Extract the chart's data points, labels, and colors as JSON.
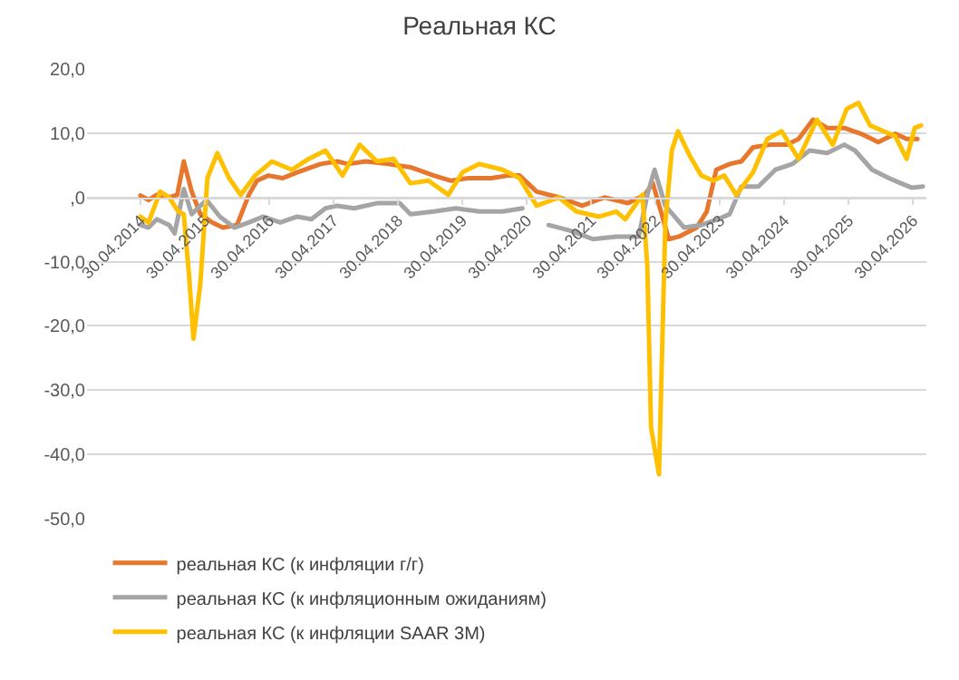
{
  "chart_data": {
    "type": "line",
    "title": "Реальная КС",
    "xlim": [
      "2013-07-01",
      "2026-07-15"
    ],
    "xticks": [
      {
        "value": "2014-04-30",
        "label": "30.04.2014"
      },
      {
        "value": "2015-04-30",
        "label": "30.04.2015"
      },
      {
        "value": "2016-04-30",
        "label": "30.04.2016"
      },
      {
        "value": "2017-04-30",
        "label": "30.04.2017"
      },
      {
        "value": "2018-04-30",
        "label": "30.04.2018"
      },
      {
        "value": "2019-04-30",
        "label": "30.04.2019"
      },
      {
        "value": "2020-04-30",
        "label": "30.04.2020"
      },
      {
        "value": "2021-04-30",
        "label": "30.04.2021"
      },
      {
        "value": "2022-04-30",
        "label": "30.04.2022"
      },
      {
        "value": "2023-04-30",
        "label": "30.04.2023"
      },
      {
        "value": "2024-04-30",
        "label": "30.04.2024"
      },
      {
        "value": "2025-04-30",
        "label": "30.04.2025"
      },
      {
        "value": "2026-04-30",
        "label": "30.04.2026"
      }
    ],
    "ylim": [
      -50,
      20
    ],
    "yticks": [
      {
        "value": -50,
        "label": "-50,0"
      },
      {
        "value": -40,
        "label": "-40,0"
      },
      {
        "value": -30,
        "label": "-30,0"
      },
      {
        "value": -20,
        "label": "-20,0"
      },
      {
        "value": -10,
        "label": "-10,0"
      },
      {
        "value": 0,
        "label": ",0"
      },
      {
        "value": 10,
        "label": "10,0"
      },
      {
        "value": 20,
        "label": "20,0"
      }
    ],
    "grid": "y",
    "legend": "bottom",
    "series": [
      {
        "name": "реальная КС (к инфляции г/г)",
        "color": "#e8772e",
        "x": [
          "2014-04-30",
          "2014-06-15",
          "2014-08-01",
          "2014-10-10",
          "2014-11-25",
          "2015-01-01",
          "2015-02-15",
          "2015-04-05",
          "2015-06-10",
          "2015-08-10",
          "2015-10-30",
          "2016-01-05",
          "2016-02-20",
          "2016-04-25",
          "2016-07-15",
          "2016-10-05",
          "2017-02-15",
          "2017-05-20",
          "2017-07-20",
          "2017-10-30",
          "2018-03-05",
          "2018-07-10",
          "2018-11-20",
          "2019-02-25",
          "2019-06-01",
          "2019-10-10",
          "2020-01-15",
          "2020-03-20",
          "2020-06-25",
          "2020-10-30",
          "2021-03-10",
          "2021-07-15",
          "2021-11-25",
          "2022-02-28",
          "2022-04-15",
          "2022-07-15",
          "2022-09-10",
          "2022-12-20",
          "2023-02-15",
          "2023-04-10",
          "2023-06-25",
          "2023-08-30",
          "2023-11-05",
          "2024-02-10",
          "2024-05-15",
          "2024-07-20",
          "2024-10-10",
          "2024-12-30",
          "2025-04-05",
          "2025-07-10",
          "2025-10-15",
          "2026-01-20",
          "2026-03-25",
          "2026-05-25"
        ],
        "values": [
          0.3,
          -0.4,
          0.4,
          0,
          0.4,
          5.6,
          0.9,
          -2.6,
          -3.9,
          -4.7,
          -4.3,
          0.4,
          2.6,
          3.4,
          3,
          3.9,
          5.2,
          5.6,
          5.2,
          5.6,
          5.2,
          4.7,
          3.4,
          2.6,
          3,
          3,
          3.4,
          3.4,
          0.9,
          0,
          -1.3,
          0,
          -0.9,
          0.4,
          2.2,
          -6.5,
          -6.1,
          -4.7,
          -2.2,
          4.3,
          5.2,
          5.6,
          7.8,
          8.2,
          8.2,
          9.1,
          12.1,
          10.8,
          10.8,
          9.9,
          8.6,
          9.9,
          9.1,
          9.1
        ]
      },
      {
        "name": "реальная КС (к инфляционным ожиданиям)",
        "color": "#a5a5a5",
        "x": [
          "2014-04-30",
          "2014-06-15",
          "2014-08-01",
          "2014-10-10",
          "2014-11-10",
          "2015-01-01",
          "2015-02-15",
          "2015-05-10",
          "2015-07-25",
          "2015-10-15",
          "2016-01-05",
          "2016-03-25",
          "2016-07-01",
          "2016-10-05",
          "2016-12-25",
          "2017-03-15",
          "2017-05-20",
          "2017-08-25",
          "2018-01-01",
          "2018-05-10",
          "2018-07-10",
          "2018-11-20",
          "2019-03-25",
          "2019-08-05",
          "2019-12-15",
          "2020-04-05",
          "2020-06-15",
          "2020-09-01",
          "2021-01-05",
          "2021-05-10",
          "2021-09-20",
          "2022-01-25",
          "2022-03-15",
          "2022-04-25",
          "2022-06-25",
          "2022-10-10",
          "2023-01-15",
          "2023-04-20",
          "2023-06-25",
          "2023-08-30",
          "2023-12-05",
          "2024-03-10",
          "2024-06-15",
          "2024-09-20",
          "2024-12-30",
          "2025-04-05",
          "2025-06-05",
          "2025-09-10",
          "2025-12-15",
          "2026-02-20",
          "2026-04-25",
          "2026-06-25"
        ],
        "values": [
          -4.3,
          -4.7,
          -3.4,
          -4.3,
          -5.6,
          1.3,
          -2.6,
          -0.4,
          -3,
          -4.7,
          -3.9,
          -3,
          -3.9,
          -3,
          -3.4,
          -1.7,
          -1.3,
          -1.7,
          -0.9,
          -0.9,
          -2.6,
          -2.2,
          -1.7,
          -2.2,
          -2.2,
          -1.7,
          null,
          -4.3,
          -5.2,
          -6.5,
          -6.1,
          -6.1,
          0.4,
          4.3,
          -1.3,
          -4.7,
          -4.3,
          -3.4,
          -2.6,
          1.7,
          1.7,
          4.3,
          5.2,
          7.3,
          6.9,
          8.2,
          7.3,
          4.3,
          3,
          2.2,
          1.5,
          1.7
        ]
      },
      {
        "name": "реальная КС (к инфляции SAAR 3M)",
        "color": "#ffc000",
        "x": [
          "2014-04-30",
          "2014-06-15",
          "2014-08-20",
          "2014-10-10",
          "2014-12-01",
          "2015-01-01",
          "2015-02-01",
          "2015-02-25",
          "2015-04-05",
          "2015-05-15",
          "2015-07-10",
          "2015-09-15",
          "2015-11-20",
          "2016-02-10",
          "2016-05-15",
          "2016-09-05",
          "2016-12-10",
          "2017-03-15",
          "2017-06-20",
          "2017-09-25",
          "2018-01-01",
          "2018-04-05",
          "2018-07-10",
          "2018-10-20",
          "2019-02-10",
          "2019-05-01",
          "2019-08-05",
          "2019-12-15",
          "2020-03-20",
          "2020-06-25",
          "2020-10-30",
          "2021-02-05",
          "2021-06-15",
          "2021-09-20",
          "2021-11-10",
          "2022-02-15",
          "2022-03-15",
          "2022-04-05",
          "2022-05-20",
          "2022-06-25",
          "2022-08-01",
          "2022-09-05",
          "2022-11-10",
          "2023-01-15",
          "2023-03-25",
          "2023-05-25",
          "2023-08-01",
          "2023-11-05",
          "2024-01-25",
          "2024-04-15",
          "2024-07-20",
          "2024-11-01",
          "2025-01-30",
          "2025-04-20",
          "2025-06-25",
          "2025-08-30",
          "2025-11-15",
          "2026-01-20",
          "2026-03-25",
          "2026-05-10",
          "2026-06-15"
        ],
        "values": [
          -3,
          -3.9,
          0.9,
          0,
          -2.2,
          -2.6,
          -12.5,
          -22,
          -13.4,
          3,
          6.9,
          3,
          0.4,
          3.4,
          5.6,
          4.3,
          6,
          7.3,
          3.4,
          8.2,
          5.6,
          6,
          2.2,
          2.6,
          0.4,
          3.9,
          5.2,
          4.3,
          3,
          -1.3,
          0,
          -2.2,
          -3,
          -2.2,
          -3.4,
          0.4,
          -10.8,
          -35.8,
          -43.1,
          -3.9,
          7.3,
          10.3,
          6.5,
          3.4,
          2.6,
          3.4,
          0.4,
          3.9,
          9.1,
          10.3,
          6,
          12.1,
          8.2,
          13.8,
          14.7,
          11.2,
          10.3,
          9.5,
          6,
          10.8,
          11.2
        ]
      }
    ]
  }
}
